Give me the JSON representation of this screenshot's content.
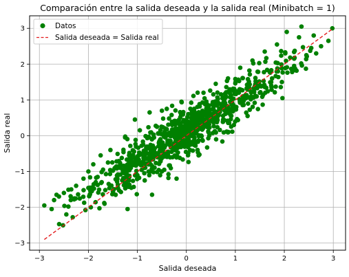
{
  "chart_data": {
    "type": "scatter",
    "title": "Comparación entre la salida deseada y la salida real (Minibatch = 1)",
    "xlabel": "Salida deseada",
    "ylabel": "Salida real",
    "xlim": [
      -3.2,
      3.25
    ],
    "ylim": [
      -3.2,
      3.35
    ],
    "xticks": [
      -3,
      -2,
      -1,
      0,
      1,
      2,
      3
    ],
    "yticks": [
      -3,
      -2,
      -1,
      0,
      1,
      2,
      3
    ],
    "grid": true,
    "legend_position": "top-left",
    "series": [
      {
        "name": "Datos",
        "kind": "scatter",
        "color": "#008000",
        "description_points": [
          [
            -2.9,
            -1.95
          ],
          [
            -2.75,
            -2.05
          ],
          [
            -2.7,
            -1.8
          ],
          [
            -2.6,
            -1.7
          ],
          [
            -2.5,
            -1.6
          ],
          [
            -2.45,
            -2.2
          ],
          [
            -2.35,
            -1.5
          ],
          [
            -2.25,
            -1.4
          ],
          [
            -2.1,
            -1.2
          ],
          [
            -2.0,
            -1.0
          ],
          [
            -1.95,
            -2.0
          ],
          [
            -1.9,
            -0.8
          ],
          [
            -1.85,
            -1.3
          ],
          [
            -1.75,
            -0.55
          ],
          [
            -1.7,
            -0.95
          ],
          [
            -1.6,
            -0.75
          ],
          [
            -1.55,
            -0.4
          ],
          [
            -1.5,
            -1.55
          ],
          [
            -1.35,
            -0.9
          ],
          [
            -1.25,
            -0.05
          ],
          [
            -1.2,
            -2.05
          ],
          [
            -1.05,
            0.45
          ],
          [
            -1.0,
            -1.1
          ],
          [
            -0.95,
            0.15
          ],
          [
            -0.85,
            -1.25
          ],
          [
            -0.75,
            0.65
          ],
          [
            -0.7,
            -1.65
          ],
          [
            -0.6,
            0.25
          ],
          [
            -0.5,
            -1.0
          ],
          [
            -0.4,
            0.75
          ],
          [
            -0.3,
            -0.45
          ],
          [
            -0.2,
            -1.2
          ],
          [
            -0.1,
            0.95
          ],
          [
            0.0,
            -0.2
          ],
          [
            0.1,
            0.6
          ],
          [
            0.25,
            -0.55
          ],
          [
            0.35,
            1.2
          ],
          [
            0.45,
            0.1
          ],
          [
            0.6,
            1.45
          ],
          [
            0.75,
            0.45
          ],
          [
            0.85,
            1.6
          ],
          [
            1.0,
            0.75
          ],
          [
            1.1,
            1.9
          ],
          [
            1.25,
            0.55
          ],
          [
            1.35,
            2.1
          ],
          [
            1.5,
            1.2
          ],
          [
            1.6,
            2.35
          ],
          [
            1.75,
            1.6
          ],
          [
            1.85,
            2.55
          ],
          [
            1.95,
            1.5
          ],
          [
            2.05,
            2.9
          ],
          [
            2.2,
            1.95
          ],
          [
            2.3,
            2.75
          ],
          [
            2.35,
            3.05
          ],
          [
            2.45,
            2.25
          ],
          [
            2.55,
            2.45
          ],
          [
            2.6,
            2.8
          ],
          [
            2.65,
            2.3
          ],
          [
            2.75,
            2.5
          ],
          [
            2.9,
            2.65
          ],
          [
            2.98,
            3.0
          ]
        ]
      },
      {
        "name": "Salida deseada = Salida real",
        "kind": "line",
        "color": "#e31a1c",
        "style": "dashed",
        "x": [
          -2.9,
          3.0
        ],
        "y": [
          -2.9,
          3.0
        ]
      }
    ],
    "sample": {
      "seed": 20240521,
      "count": 900
    }
  },
  "legend": {
    "items": [
      {
        "label": "Datos"
      },
      {
        "label": "Salida deseada = Salida real"
      }
    ]
  }
}
